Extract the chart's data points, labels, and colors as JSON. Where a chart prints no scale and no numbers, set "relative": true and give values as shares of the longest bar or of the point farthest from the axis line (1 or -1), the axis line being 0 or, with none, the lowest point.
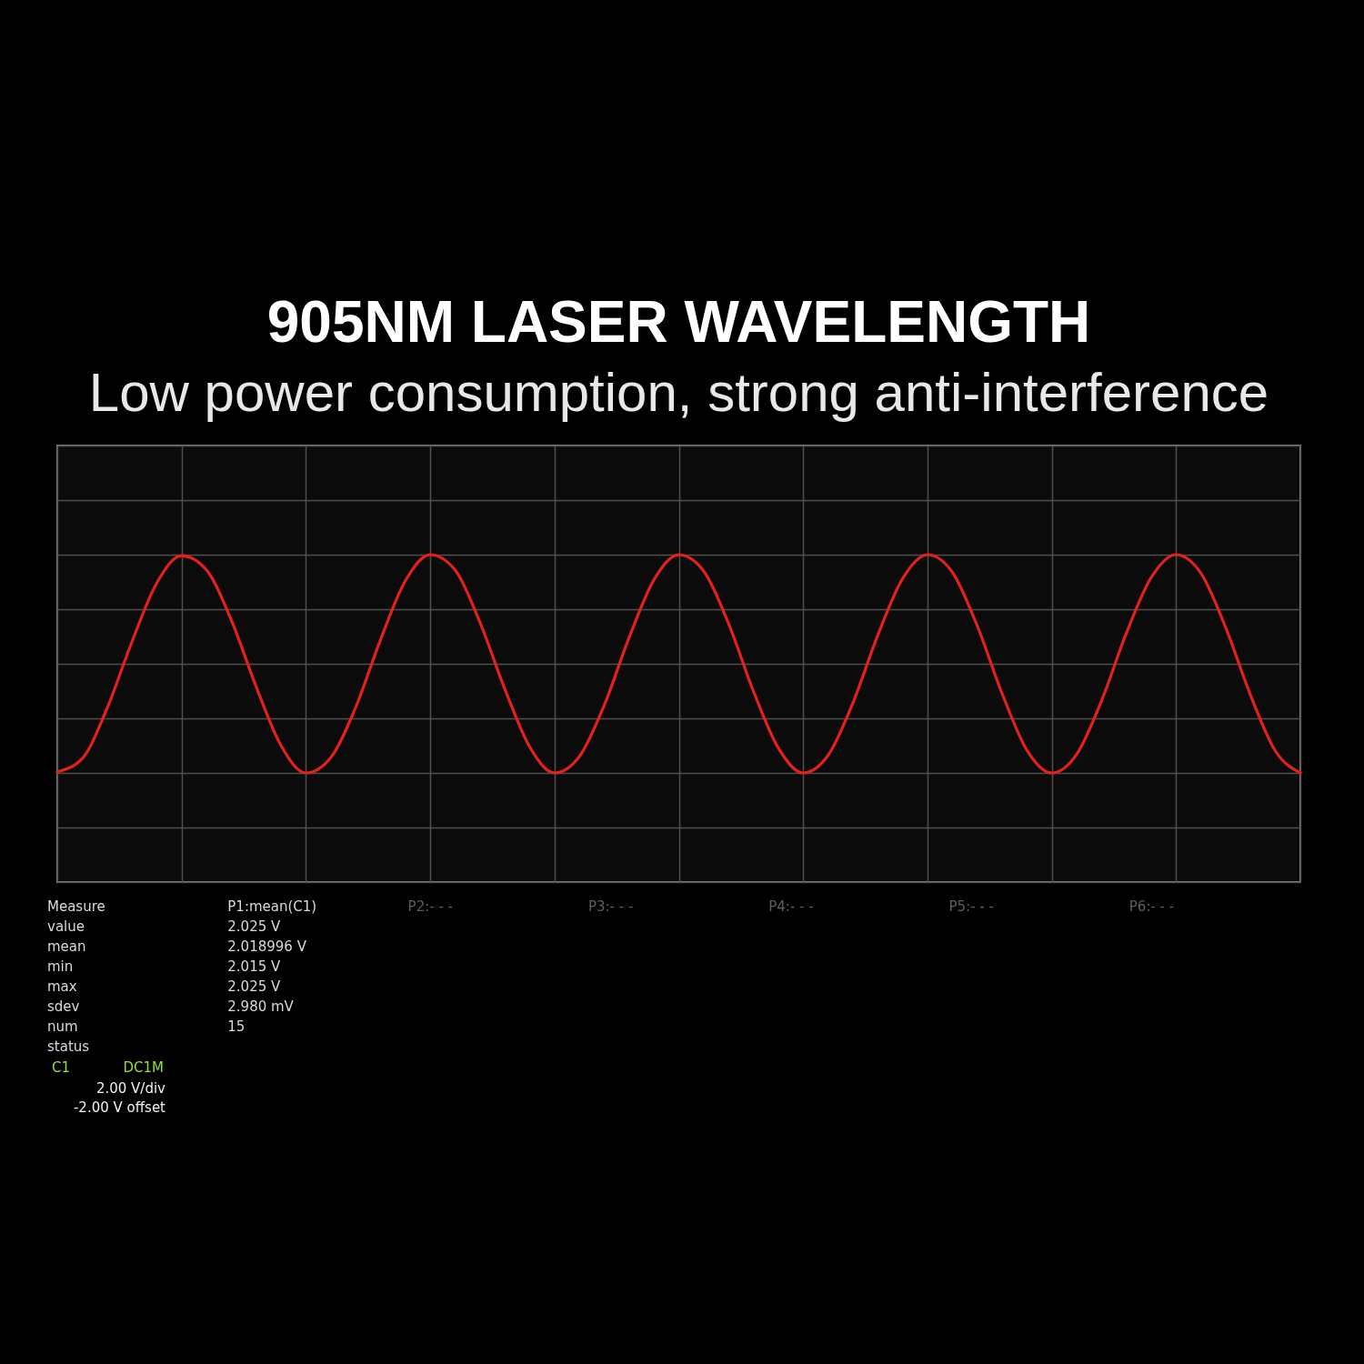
{
  "chart_data": {
    "type": "line",
    "title": "905NM LASER WAVELENGTH",
    "subtitle": "Low power consumption, strong anti-interference",
    "categories": [
      null,
      null,
      null,
      null,
      null,
      null,
      null,
      null,
      null,
      null,
      null,
      null,
      null,
      null,
      null,
      null,
      null,
      null,
      null,
      null,
      null,
      null,
      null,
      null,
      null,
      null,
      null,
      null,
      null,
      null,
      null,
      null,
      null,
      null,
      null,
      null,
      null,
      null,
      null,
      null,
      null,
      null,
      null,
      null,
      null,
      null,
      null,
      null,
      null,
      null,
      null
    ],
    "series": [
      {
        "color": "#e3211c",
        "values": [
          -0.99,
          -0.87,
          -0.41,
          0.2,
          0.74,
          0.99,
          0.86,
          0.4,
          -0.21,
          -0.75,
          -1.0,
          -0.86,
          -0.4,
          0.22,
          0.76,
          1.0,
          0.86,
          0.38,
          -0.23,
          -0.76,
          -1.0,
          -0.85,
          -0.38,
          0.24,
          0.77,
          1.0,
          0.85,
          0.37,
          -0.25,
          -0.77,
          -1.0,
          -0.84,
          -0.36,
          0.26,
          0.78,
          1.0,
          0.84,
          0.35,
          -0.27,
          -0.79,
          -1.0,
          -0.83,
          -0.34,
          0.28,
          0.79,
          1.0,
          0.83,
          0.33,
          -0.29,
          -0.8,
          -1.0
        ]
      }
    ],
    "relative": true,
    "grid": true,
    "annotations": [
      "Measure",
      "P1:mean(C1)",
      "P2:- - -",
      "P3:- - -",
      "P4:- - -",
      "P5:- - -",
      "P6:- - -",
      "value",
      "2.025 V",
      "mean",
      "2.018996 V",
      "min",
      "2.015 V",
      "max",
      "2.025 V",
      "sdev",
      "2.980 mV",
      "num",
      "15",
      "status",
      "C1",
      "DC1M",
      "2.00 V/div",
      "-2.00 V offset"
    ]
  }
}
